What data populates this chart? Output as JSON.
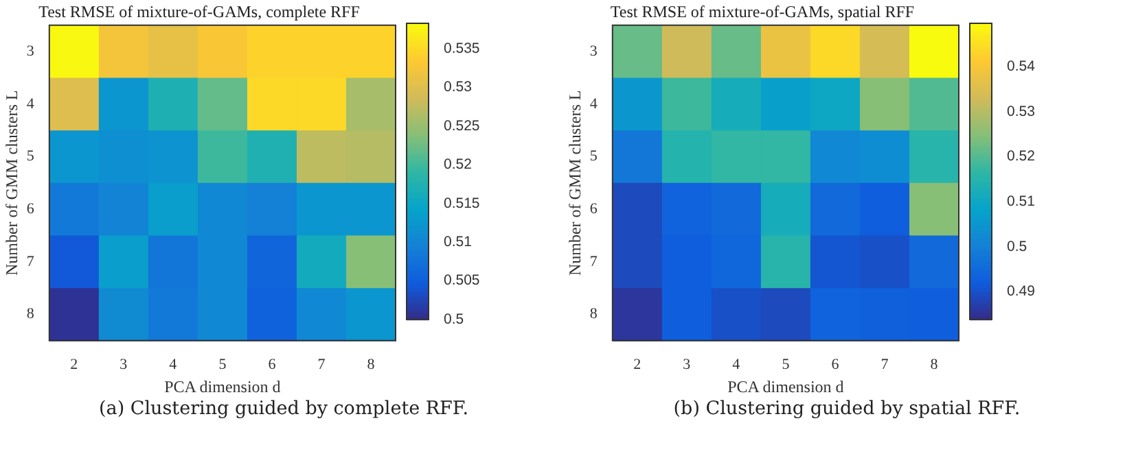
{
  "chart_data": [
    {
      "type": "heatmap",
      "title": "Test RMSE of mixture-of-GAMs, complete RFF",
      "xlabel": "PCA dimension d",
      "ylabel": "Number of GMM clusters L",
      "categories": [
        "2",
        "3",
        "4",
        "5",
        "6",
        "7",
        "8"
      ],
      "y_categories": [
        "3",
        "4",
        "5",
        "6",
        "7",
        "8"
      ],
      "cells": [
        [
          0.538,
          0.5325,
          0.531,
          0.533,
          0.5345,
          0.5345,
          0.5345
        ],
        [
          0.53,
          0.5125,
          0.5172,
          0.522,
          0.535,
          0.535,
          0.526
        ],
        [
          0.5125,
          0.5115,
          0.512,
          0.52,
          0.5175,
          0.5275,
          0.527
        ],
        [
          0.5085,
          0.51,
          0.5135,
          0.5105,
          0.5095,
          0.5125,
          0.5125
        ],
        [
          0.5045,
          0.5135,
          0.508,
          0.5105,
          0.506,
          0.516,
          0.524
        ],
        [
          0.5008,
          0.511,
          0.5085,
          0.5105,
          0.5055,
          0.5105,
          0.5125
        ]
      ],
      "clim": [
        0.5,
        0.5383
      ],
      "cticks": [
        0.5,
        0.505,
        0.51,
        0.515,
        0.52,
        0.525,
        0.53,
        0.535
      ],
      "annotations": [
        "(a) Clustering guided by complete RFF."
      ]
    },
    {
      "type": "heatmap",
      "title": "Test RMSE of mixture-of-GAMs, spatial RFF",
      "xlabel": "PCA dimension d",
      "ylabel": "Number of GMM clusters L",
      "categories": [
        "2",
        "3",
        "4",
        "5",
        "6",
        "7",
        "8"
      ],
      "y_categories": [
        "3",
        "4",
        "5",
        "6",
        "7",
        "8"
      ],
      "cells": [
        [
          0.522,
          0.533,
          0.522,
          0.538,
          0.544,
          0.534,
          0.5497
        ],
        [
          0.5055,
          0.518,
          0.512,
          0.5075,
          0.51,
          0.525,
          0.52
        ],
        [
          0.498,
          0.5148,
          0.517,
          0.517,
          0.502,
          0.503,
          0.5155
        ],
        [
          0.489,
          0.4937,
          0.495,
          0.512,
          0.495,
          0.4924,
          0.525
        ],
        [
          0.489,
          0.4924,
          0.4944,
          0.5155,
          0.491,
          0.49,
          0.495
        ],
        [
          0.4858,
          0.4924,
          0.49,
          0.489,
          0.4937,
          0.493,
          0.4924
        ]
      ],
      "clim": [
        0.4838,
        0.5497
      ],
      "cticks": [
        0.49,
        0.5,
        0.51,
        0.52,
        0.53,
        0.54
      ],
      "annotations": [
        "(b) Clustering guided by spatial RFF."
      ]
    }
  ]
}
